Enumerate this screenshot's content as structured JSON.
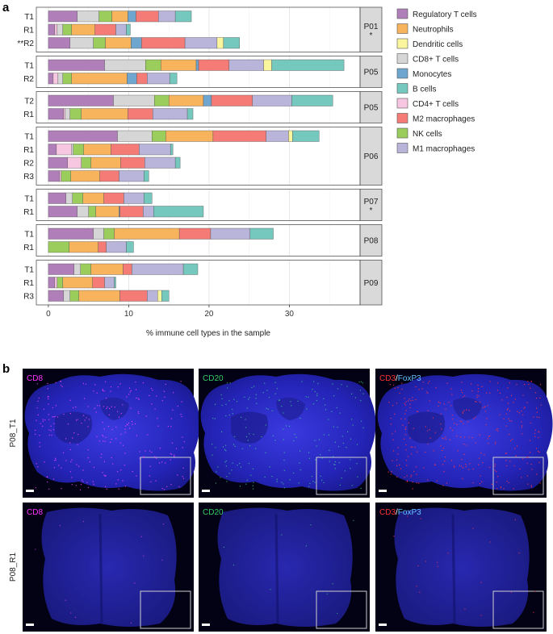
{
  "panel_a_label": "a",
  "panel_b_label": "b",
  "colors": {
    "Regulatory T cells": "#b07fba",
    "CD8+ T cells": "#d6d6d6",
    "NK cells": "#9acd5c",
    "Neutrophils": "#f7b45c",
    "Monocytes": "#6fa6cf",
    "M2 macrophages": "#f47b76",
    "M1 macrophages": "#b8b4da",
    "Dendritic cells": "#fbf59e",
    "CD4+ T cells": "#f7c6e0",
    "B cells": "#74c8be"
  },
  "chart_data": {
    "type": "bar",
    "orientation": "horizontal",
    "stacked": true,
    "xlabel": "% immune cell types in the sample",
    "xlim": [
      -1.5,
      38.8
    ],
    "xticks": [
      0,
      10,
      20,
      30
    ],
    "xtick_labels": [
      "0",
      "10",
      "20",
      "30"
    ],
    "legend": [
      "Regulatory T cells",
      "Neutrophils",
      "Dendritic cells",
      "CD8+ T cells",
      "Monocytes",
      "B cells",
      "CD4+ T cells",
      "M2 macrophages",
      "NK cells",
      "M1 macrophages"
    ],
    "stack_order": [
      "Regulatory T cells",
      "CD4+ T cells",
      "CD8+ T cells",
      "NK cells",
      "Neutrophils",
      "Monocytes",
      "M2 macrophages",
      "M1 macrophages",
      "Dendritic cells",
      "B cells"
    ],
    "facets": [
      {
        "label": "P01",
        "note": "*",
        "rows": [
          {
            "name": "T1",
            "values": {
              "Regulatory T cells": 3.6,
              "CD8+ T cells": 2.7,
              "NK cells": 1.6,
              "Neutrophils": 2.0,
              "Monocytes": 1.0,
              "M2 macrophages": 2.8,
              "M1 macrophages": 2.1,
              "B cells": 2.0
            }
          },
          {
            "name": "R1",
            "values": {
              "Regulatory T cells": 0.8,
              "CD4+ T cells": 0.3,
              "CD8+ T cells": 0.7,
              "NK cells": 1.1,
              "Neutrophils": 2.9,
              "M2 macrophages": 2.6,
              "M1 macrophages": 1.3,
              "B cells": 0.5
            }
          },
          {
            "name": "**R2",
            "values": {
              "Regulatory T cells": 2.7,
              "CD8+ T cells": 2.9,
              "NK cells": 1.5,
              "Neutrophils": 3.2,
              "Monocytes": 1.3,
              "M2 macrophages": 5.4,
              "M1 macrophages": 4.0,
              "Dendritic cells": 0.8,
              "B cells": 2.0
            }
          }
        ]
      },
      {
        "label": "P05",
        "note": "",
        "rows": [
          {
            "name": "T1",
            "values": {
              "Regulatory T cells": 7.0,
              "CD8+ T cells": 5.1,
              "NK cells": 1.9,
              "Neutrophils": 4.4,
              "Monocytes": 0.3,
              "M2 macrophages": 3.8,
              "M1 macrophages": 4.3,
              "Dendritic cells": 1.0,
              "B cells": 9.0
            }
          },
          {
            "name": "R2",
            "values": {
              "Regulatory T cells": 0.6,
              "CD4+ T cells": 0.6,
              "CD8+ T cells": 0.6,
              "NK cells": 1.1,
              "Neutrophils": 6.9,
              "Monocytes": 1.2,
              "M2 macrophages": 1.3,
              "M1 macrophages": 2.8,
              "B cells": 0.9
            }
          }
        ]
      },
      {
        "label": "P05",
        "note": "",
        "rows": [
          {
            "name": "T2",
            "values": {
              "Regulatory T cells": 8.1,
              "CD8+ T cells": 5.1,
              "NK cells": 1.8,
              "Neutrophils": 4.3,
              "Monocytes": 1.0,
              "M2 macrophages": 5.1,
              "M1 macrophages": 4.9,
              "B cells": 5.1
            }
          },
          {
            "name": "R1",
            "values": {
              "Regulatory T cells": 1.9,
              "CD4+ T cells": 0.2,
              "CD8+ T cells": 0.6,
              "NK cells": 1.4,
              "Neutrophils": 5.8,
              "M2 macrophages": 3.1,
              "M1 macrophages": 4.3,
              "B cells": 0.7
            }
          }
        ]
      },
      {
        "label": "P06",
        "note": "",
        "rows": [
          {
            "name": "T1",
            "values": {
              "Regulatory T cells": 8.6,
              "CD8+ T cells": 4.3,
              "NK cells": 1.7,
              "Neutrophils": 5.9,
              "M2 macrophages": 6.6,
              "M1 macrophages": 2.8,
              "Dendritic cells": 0.5,
              "B cells": 3.3
            }
          },
          {
            "name": "R1",
            "values": {
              "Regulatory T cells": 1.0,
              "CD4+ T cells": 1.9,
              "CD8+ T cells": 0.2,
              "NK cells": 1.3,
              "Neutrophils": 3.4,
              "M2 macrophages": 3.5,
              "M1 macrophages": 3.9,
              "B cells": 0.3
            }
          },
          {
            "name": "R2",
            "values": {
              "Regulatory T cells": 2.4,
              "CD4+ T cells": 1.7,
              "NK cells": 1.2,
              "Neutrophils": 3.7,
              "M2 macrophages": 3.0,
              "M1 macrophages": 3.8,
              "B cells": 0.6
            }
          },
          {
            "name": "R3",
            "values": {
              "Regulatory T cells": 1.4,
              "CD4+ T cells": 0.2,
              "NK cells": 1.2,
              "Neutrophils": 3.6,
              "M2 macrophages": 2.4,
              "M1 macrophages": 3.1,
              "B cells": 0.6
            }
          }
        ]
      },
      {
        "label": "P07",
        "note": "*",
        "rows": [
          {
            "name": "T1",
            "values": {
              "Regulatory T cells": 2.2,
              "CD8+ T cells": 0.8,
              "NK cells": 1.3,
              "Neutrophils": 2.6,
              "M2 macrophages": 2.5,
              "M1 macrophages": 2.5,
              "B cells": 1.0
            }
          },
          {
            "name": "R1",
            "values": {
              "Regulatory T cells": 3.6,
              "CD8+ T cells": 1.4,
              "NK cells": 0.9,
              "Neutrophils": 2.9,
              "Monocytes": 0.1,
              "M2 macrophages": 2.9,
              "M1 macrophages": 1.3,
              "B cells": 6.2
            }
          }
        ]
      },
      {
        "label": "P08",
        "note": "",
        "rows": [
          {
            "name": "T1",
            "values": {
              "Regulatory T cells": 5.6,
              "CD8+ T cells": 1.3,
              "NK cells": 1.3,
              "Neutrophils": 8.1,
              "M2 macrophages": 3.9,
              "M1 macrophages": 4.9,
              "B cells": 2.9
            }
          },
          {
            "name": "R1",
            "values": {
              "NK cells": 2.6,
              "Neutrophils": 3.6,
              "M2 macrophages": 1.0,
              "M1 macrophages": 2.5,
              "B cells": 0.9
            }
          }
        ]
      },
      {
        "label": "P09",
        "note": "",
        "rows": [
          {
            "name": "T1",
            "values": {
              "Regulatory T cells": 3.2,
              "CD8+ T cells": 0.8,
              "NK cells": 1.3,
              "Neutrophils": 4.0,
              "M2 macrophages": 1.1,
              "M1 macrophages": 6.4,
              "B cells": 1.8
            }
          },
          {
            "name": "R1",
            "values": {
              "Regulatory T cells": 0.8,
              "CD4+ T cells": 0.3,
              "NK cells": 0.7,
              "Neutrophils": 3.7,
              "M2 macrophages": 1.5,
              "M1 macrophages": 1.2,
              "B cells": 0.2
            }
          },
          {
            "name": "R3",
            "values": {
              "Regulatory T cells": 1.9,
              "CD8+ T cells": 0.8,
              "NK cells": 1.1,
              "Neutrophils": 5.1,
              "M2 macrophages": 3.4,
              "M1 macrophages": 1.3,
              "Dendritic cells": 0.5,
              "B cells": 0.9
            }
          }
        ]
      }
    ]
  },
  "panel_b": {
    "row_labels": [
      "P08_T1",
      "P08_R1"
    ],
    "column_labels": [
      [
        {
          "text": "CD8",
          "color": "#ff33ff"
        }
      ],
      [
        {
          "text": "CD20",
          "color": "#33cc66"
        }
      ],
      [
        {
          "text": "CD3",
          "color": "#ff3333"
        },
        {
          "text": "/",
          "color": "#ffffff"
        },
        {
          "text": "FoxP3",
          "color": "#66c2ff"
        }
      ]
    ]
  }
}
